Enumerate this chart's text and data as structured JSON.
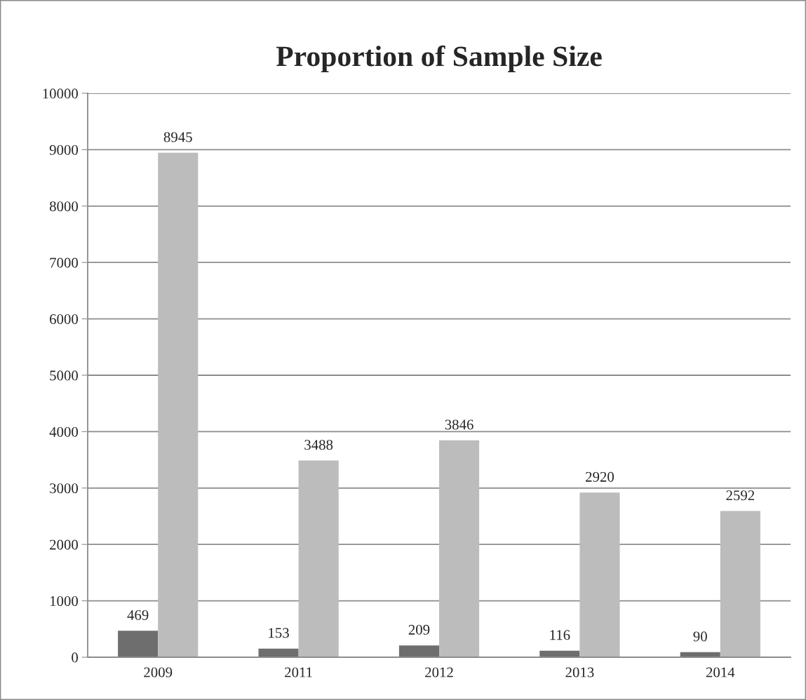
{
  "chart_data": {
    "type": "bar",
    "title": "Proportion of Sample Size",
    "categories": [
      "2009",
      "2011",
      "2012",
      "2013",
      "2014"
    ],
    "series": [
      {
        "color": "#6e6e6e",
        "values": [
          469,
          153,
          209,
          116,
          90
        ]
      },
      {
        "color": "#bcbcbc",
        "values": [
          8945,
          3488,
          3846,
          2920,
          2592
        ]
      }
    ],
    "ylim": [
      0,
      10000
    ],
    "yticks": [
      0,
      1000,
      2000,
      3000,
      4000,
      5000,
      6000,
      7000,
      8000,
      9000,
      10000
    ],
    "grid": "y",
    "data_labels": true
  }
}
